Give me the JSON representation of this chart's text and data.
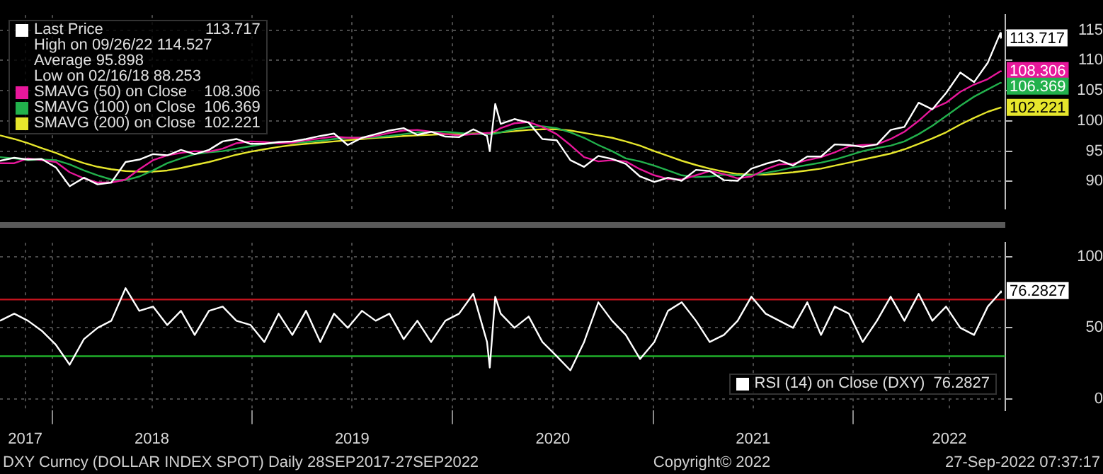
{
  "chart_data": [
    {
      "type": "line",
      "x": [
        "2017-09-28",
        "2017-10-24",
        "2017-11-18",
        "2017-12-13",
        "2018-01-08",
        "2018-02-02",
        "2018-02-28",
        "2018-03-25",
        "2018-04-19",
        "2018-05-15",
        "2018-06-09",
        "2018-07-04",
        "2018-07-30",
        "2018-08-24",
        "2018-09-18",
        "2018-10-14",
        "2018-11-08",
        "2018-12-03",
        "2018-12-29",
        "2019-01-23",
        "2019-02-18",
        "2019-03-15",
        "2019-04-09",
        "2019-05-05",
        "2019-05-30",
        "2019-06-24",
        "2019-07-20",
        "2019-08-14",
        "2019-09-08",
        "2019-10-04",
        "2019-10-29",
        "2019-11-23",
        "2019-12-19",
        "2020-01-13",
        "2020-02-08",
        "2020-03-04",
        "2020-03-09",
        "2020-03-19",
        "2020-03-29",
        "2020-04-23",
        "2020-05-19",
        "2020-06-13",
        "2020-07-09",
        "2020-08-03",
        "2020-08-28",
        "2020-09-23",
        "2020-10-18",
        "2020-11-12",
        "2020-12-08",
        "2021-01-03",
        "2021-01-28",
        "2021-02-22",
        "2021-03-20",
        "2021-04-14",
        "2021-05-10",
        "2021-06-04",
        "2021-06-29",
        "2021-07-25",
        "2021-08-19",
        "2021-09-13",
        "2021-10-09",
        "2021-11-03",
        "2021-11-28",
        "2021-12-24",
        "2022-01-18",
        "2022-02-13",
        "2022-03-10",
        "2022-04-04",
        "2022-04-30",
        "2022-05-25",
        "2022-06-19",
        "2022-07-15",
        "2022-08-09",
        "2022-09-03",
        "2022-09-26",
        "2022-09-27"
      ],
      "xlim": [
        "2017-09-28",
        "2022-10-05"
      ],
      "xticks": [
        {
          "value": "2017-11-13",
          "label": null
        },
        {
          "value": "2018-01-01",
          "label": null
        },
        {
          "value": "2018-07-02",
          "label": null
        },
        {
          "value": "2019-01-01",
          "label": null
        },
        {
          "value": "2019-07-02",
          "label": null
        },
        {
          "value": "2020-01-01",
          "label": null
        },
        {
          "value": "2020-07-02",
          "label": null
        },
        {
          "value": "2021-01-01",
          "label": null
        },
        {
          "value": "2021-07-02",
          "label": null
        },
        {
          "value": "2022-01-01",
          "label": null
        },
        {
          "value": "2022-06-25",
          "label": null
        }
      ],
      "ylim": [
        85.5,
        117.5
      ],
      "yticks": [
        90,
        95,
        100,
        105,
        110,
        115
      ],
      "grid": true,
      "legend": "top left",
      "tick_labels": "y",
      "annotations": [
        "High on 09/26/22 114.527",
        "Average 95.898",
        "Low on 02/16/18 88.253"
      ],
      "series": [
        {
          "name": "Last Price",
          "color": "#ffffff",
          "values": [
            93.4,
            93.9,
            93.6,
            93.7,
            92.3,
            89.2,
            90.6,
            89.5,
            89.8,
            93.2,
            93.6,
            94.5,
            94.3,
            95.2,
            94.5,
            95.2,
            96.6,
            97.0,
            96.2,
            96.2,
            96.5,
            96.6,
            97.0,
            97.5,
            97.9,
            96.0,
            97.2,
            97.8,
            98.4,
            98.8,
            97.7,
            98.2,
            97.4,
            97.3,
            98.6,
            97.5,
            95.0,
            102.8,
            99.5,
            100.3,
            99.7,
            97.0,
            96.8,
            93.5,
            92.4,
            94.2,
            93.7,
            92.9,
            90.8,
            89.9,
            90.6,
            90.1,
            91.9,
            91.7,
            90.2,
            90.1,
            92.1,
            92.9,
            93.5,
            92.6,
            94.1,
            94.1,
            96.1,
            96.0,
            95.7,
            96.1,
            98.5,
            99.0,
            103.0,
            101.9,
            104.6,
            108.0,
            106.4,
            109.6,
            114.527,
            113.717
          ],
          "value_labels": [
            null,
            null,
            null,
            null,
            null,
            null,
            null,
            null,
            null,
            null,
            null,
            null,
            null,
            null,
            null,
            null,
            null,
            null,
            null,
            null,
            null,
            null,
            null,
            null,
            null,
            null,
            null,
            null,
            null,
            null,
            null,
            null,
            null,
            null,
            null,
            null,
            null,
            null,
            null,
            null,
            null,
            null,
            null,
            null,
            null,
            null,
            null,
            null,
            null,
            null,
            null,
            null,
            null,
            null,
            null,
            null,
            null,
            null,
            null,
            null,
            null,
            null,
            null,
            null,
            null,
            null,
            null,
            null,
            null,
            null,
            null,
            null,
            null,
            null,
            null,
            "113.717"
          ]
        },
        {
          "name": "SMAVG (50) on Close",
          "color": "#e8179b",
          "values": [
            93.0,
            93.0,
            93.8,
            93.5,
            93.2,
            91.5,
            90.5,
            89.8,
            89.8,
            90.3,
            92.0,
            93.5,
            94.3,
            94.7,
            95.0,
            94.9,
            95.4,
            96.3,
            96.6,
            96.5,
            96.3,
            96.4,
            96.8,
            97.1,
            97.4,
            97.2,
            97.2,
            97.5,
            98.0,
            98.4,
            98.5,
            98.2,
            97.8,
            97.6,
            97.8,
            98.0,
            98.0,
            98.3,
            98.8,
            99.6,
            99.8,
            99.0,
            97.8,
            96.0,
            94.0,
            93.3,
            93.5,
            93.3,
            92.0,
            91.0,
            90.4,
            90.3,
            91.0,
            91.7,
            91.2,
            90.5,
            90.8,
            92.0,
            92.8,
            92.9,
            93.5,
            94.0,
            94.8,
            95.8,
            96.0,
            96.1,
            97.0,
            98.2,
            100.0,
            102.0,
            103.0,
            104.8,
            106.0,
            106.9,
            108.2,
            108.306
          ],
          "value_labels": [
            null,
            null,
            null,
            null,
            null,
            null,
            null,
            null,
            null,
            null,
            null,
            null,
            null,
            null,
            null,
            null,
            null,
            null,
            null,
            null,
            null,
            null,
            null,
            null,
            null,
            null,
            null,
            null,
            null,
            null,
            null,
            null,
            null,
            null,
            null,
            null,
            null,
            null,
            null,
            null,
            null,
            null,
            null,
            null,
            null,
            null,
            null,
            null,
            null,
            null,
            null,
            null,
            null,
            null,
            null,
            null,
            null,
            null,
            null,
            null,
            null,
            null,
            null,
            null,
            null,
            null,
            null,
            null,
            null,
            null,
            null,
            null,
            null,
            null,
            null,
            "108.306"
          ]
        },
        {
          "name": "SMAVG (100) on Close",
          "color": "#22b14c",
          "values": [
            94.0,
            93.8,
            93.5,
            93.6,
            93.5,
            92.8,
            91.8,
            91.0,
            90.3,
            90.2,
            90.8,
            91.8,
            93.0,
            93.8,
            94.5,
            94.8,
            95.0,
            95.4,
            95.8,
            96.2,
            96.4,
            96.4,
            96.5,
            96.7,
            97.0,
            97.2,
            97.2,
            97.3,
            97.5,
            97.8,
            98.1,
            98.2,
            98.2,
            98.0,
            97.8,
            97.8,
            97.8,
            97.9,
            98.1,
            98.6,
            99.0,
            99.1,
            98.8,
            98.1,
            97.2,
            96.0,
            95.0,
            93.8,
            93.3,
            92.6,
            91.8,
            91.0,
            90.7,
            90.8,
            91.1,
            91.0,
            91.0,
            91.4,
            91.8,
            92.3,
            92.7,
            93.1,
            93.6,
            94.3,
            95.0,
            95.5,
            95.9,
            96.6,
            97.8,
            99.2,
            100.8,
            102.5,
            104.0,
            105.2,
            106.3,
            106.369
          ],
          "value_labels": [
            null,
            null,
            null,
            null,
            null,
            null,
            null,
            null,
            null,
            null,
            null,
            null,
            null,
            null,
            null,
            null,
            null,
            null,
            null,
            null,
            null,
            null,
            null,
            null,
            null,
            null,
            null,
            null,
            null,
            null,
            null,
            null,
            null,
            null,
            null,
            null,
            null,
            null,
            null,
            null,
            null,
            null,
            null,
            null,
            null,
            null,
            null,
            null,
            null,
            null,
            null,
            null,
            null,
            null,
            null,
            null,
            null,
            null,
            null,
            null,
            null,
            null,
            null,
            null,
            null,
            null,
            null,
            null,
            null,
            null,
            null,
            null,
            null,
            null,
            null,
            "106.369"
          ]
        },
        {
          "name": "SMAVG (200) on Close",
          "color": "#e6e62c",
          "values": [
            97.6,
            97.0,
            96.3,
            95.5,
            94.7,
            93.8,
            93.0,
            92.4,
            92.0,
            91.7,
            91.6,
            91.6,
            91.8,
            92.2,
            92.7,
            93.2,
            93.8,
            94.4,
            94.9,
            95.3,
            95.7,
            96.0,
            96.2,
            96.4,
            96.6,
            96.8,
            97.0,
            97.2,
            97.3,
            97.5,
            97.6,
            97.7,
            97.8,
            97.8,
            97.9,
            97.9,
            97.9,
            98.0,
            98.1,
            98.3,
            98.5,
            98.6,
            98.6,
            98.4,
            98.0,
            97.6,
            97.2,
            96.6,
            95.9,
            95.0,
            94.2,
            93.4,
            92.7,
            92.1,
            91.6,
            91.2,
            91.1,
            91.1,
            91.3,
            91.5,
            91.8,
            92.1,
            92.6,
            93.1,
            93.6,
            94.1,
            94.6,
            95.3,
            96.2,
            97.1,
            98.1,
            99.4,
            100.5,
            101.5,
            102.2,
            102.221
          ],
          "value_labels": [
            null,
            null,
            null,
            null,
            null,
            null,
            null,
            null,
            null,
            null,
            null,
            null,
            null,
            null,
            null,
            null,
            null,
            null,
            null,
            null,
            null,
            null,
            null,
            null,
            null,
            null,
            null,
            null,
            null,
            null,
            null,
            null,
            null,
            null,
            null,
            null,
            null,
            null,
            null,
            null,
            null,
            null,
            null,
            null,
            null,
            null,
            null,
            null,
            null,
            null,
            null,
            null,
            null,
            null,
            null,
            null,
            null,
            null,
            null,
            null,
            null,
            null,
            null,
            null,
            null,
            null,
            null,
            null,
            null,
            null,
            null,
            null,
            null,
            null,
            null,
            "102.221"
          ]
        }
      ]
    },
    {
      "type": "line",
      "x": [
        "2017-09-28",
        "2017-10-24",
        "2017-11-18",
        "2017-12-13",
        "2018-01-08",
        "2018-02-02",
        "2018-02-28",
        "2018-03-25",
        "2018-04-19",
        "2018-05-15",
        "2018-06-09",
        "2018-07-04",
        "2018-07-30",
        "2018-08-24",
        "2018-09-18",
        "2018-10-14",
        "2018-11-08",
        "2018-12-03",
        "2018-12-29",
        "2019-01-23",
        "2019-02-18",
        "2019-03-15",
        "2019-04-09",
        "2019-05-05",
        "2019-05-30",
        "2019-06-24",
        "2019-07-20",
        "2019-08-14",
        "2019-09-08",
        "2019-10-04",
        "2019-10-29",
        "2019-11-23",
        "2019-12-19",
        "2020-01-13",
        "2020-02-08",
        "2020-03-04",
        "2020-03-09",
        "2020-03-19",
        "2020-03-29",
        "2020-04-23",
        "2020-05-19",
        "2020-06-13",
        "2020-07-09",
        "2020-08-03",
        "2020-08-28",
        "2020-09-23",
        "2020-10-18",
        "2020-11-12",
        "2020-12-08",
        "2021-01-03",
        "2021-01-28",
        "2021-02-22",
        "2021-03-20",
        "2021-04-14",
        "2021-05-10",
        "2021-06-04",
        "2021-06-29",
        "2021-07-25",
        "2021-08-19",
        "2021-09-13",
        "2021-10-09",
        "2021-11-03",
        "2021-11-28",
        "2021-12-24",
        "2022-01-18",
        "2022-02-13",
        "2022-03-10",
        "2022-04-04",
        "2022-04-30",
        "2022-05-25",
        "2022-06-19",
        "2022-07-15",
        "2022-08-09",
        "2022-09-03",
        "2022-09-26",
        "2022-09-27"
      ],
      "xlim": [
        "2017-09-28",
        "2022-10-05"
      ],
      "xticks": [
        {
          "value": "2017-11-13",
          "label": "2017"
        },
        {
          "value": "2018-01-01",
          "label": null
        },
        {
          "value": "2018-07-02",
          "label": "2018"
        },
        {
          "value": "2019-01-01",
          "label": null
        },
        {
          "value": "2019-07-02",
          "label": "2019"
        },
        {
          "value": "2020-01-01",
          "label": null
        },
        {
          "value": "2020-07-02",
          "label": "2020"
        },
        {
          "value": "2021-01-01",
          "label": null
        },
        {
          "value": "2021-07-02",
          "label": "2021"
        },
        {
          "value": "2022-01-01",
          "label": null
        },
        {
          "value": "2022-06-25",
          "label": "2022"
        }
      ],
      "ylim": [
        -8,
        110
      ],
      "yticks": [
        0,
        50,
        100
      ],
      "grid": true,
      "legend": "bottom right",
      "ref_lines": [
        {
          "axis": "y",
          "value": 70,
          "color": "#c8141e"
        },
        {
          "axis": "y",
          "value": 30,
          "color": "#1fae2a"
        }
      ],
      "annotations": [
        "DXY Curncy (DOLLAR INDEX SPOT) Daily 28SEP2017-27SEP2022",
        "Copyright© 2022",
        "27-Sep-2022 07:37:17"
      ],
      "series": [
        {
          "name": "RSI (14) on Close (DXY)",
          "color": "#ffffff",
          "values": [
            55,
            60,
            55,
            48,
            38,
            24,
            42,
            50,
            55,
            78,
            62,
            65,
            52,
            62,
            45,
            62,
            65,
            55,
            52,
            40,
            60,
            45,
            62,
            40,
            60,
            50,
            62,
            55,
            60,
            42,
            55,
            40,
            55,
            60,
            74,
            40,
            22,
            72,
            60,
            50,
            58,
            40,
            30,
            20,
            40,
            68,
            55,
            45,
            28,
            40,
            62,
            68,
            55,
            40,
            45,
            55,
            72,
            60,
            55,
            50,
            68,
            45,
            65,
            60,
            40,
            55,
            72,
            55,
            74,
            55,
            65,
            50,
            45,
            65,
            75,
            76.2827
          ],
          "value_labels": [
            null,
            null,
            null,
            null,
            null,
            null,
            null,
            null,
            null,
            null,
            null,
            null,
            null,
            null,
            null,
            null,
            null,
            null,
            null,
            null,
            null,
            null,
            null,
            null,
            null,
            null,
            null,
            null,
            null,
            null,
            null,
            null,
            null,
            null,
            null,
            null,
            null,
            null,
            null,
            null,
            null,
            null,
            null,
            null,
            null,
            null,
            null,
            null,
            null,
            null,
            null,
            null,
            null,
            null,
            null,
            null,
            null,
            null,
            null,
            null,
            null,
            null,
            null,
            null,
            null,
            null,
            null,
            null,
            null,
            null,
            null,
            null,
            null,
            null,
            null,
            "76.2827"
          ]
        }
      ]
    }
  ]
}
